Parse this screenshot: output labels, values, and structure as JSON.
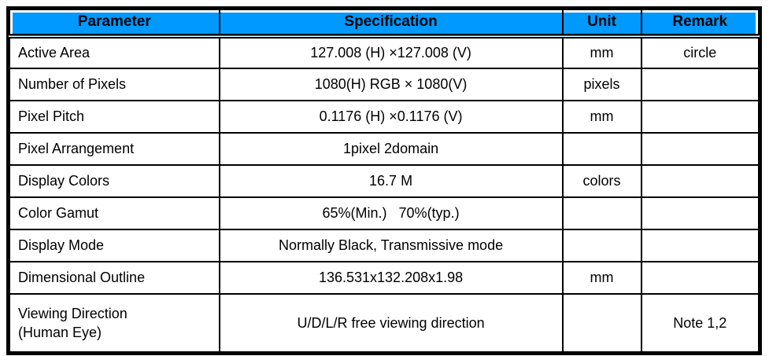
{
  "page": {
    "background": "#ffffff"
  },
  "table": {
    "colors": {
      "header_bg": "#0099ff",
      "header_text": "#000000",
      "border": "#000000",
      "body_bg": "#ffffff"
    },
    "columns": [
      {
        "key": "parameter",
        "label": "Parameter"
      },
      {
        "key": "specification",
        "label": "Specification"
      },
      {
        "key": "unit",
        "label": "Unit"
      },
      {
        "key": "remark",
        "label": "Remark"
      }
    ],
    "rows": [
      {
        "parameter": "Active Area",
        "specification": "127.008 (H) ×127.008 (V)",
        "unit": "mm",
        "remark": "circle"
      },
      {
        "parameter": "Number of Pixels",
        "specification": "1080(H) RGB × 1080(V)",
        "unit": "pixels",
        "remark": ""
      },
      {
        "parameter": "Pixel Pitch",
        "specification": "0.1176 (H) ×0.1176 (V)",
        "unit": "mm",
        "remark": ""
      },
      {
        "parameter": "Pixel Arrangement",
        "specification": "1pixel 2domain",
        "unit": "",
        "remark": ""
      },
      {
        "parameter": "Display Colors",
        "specification": "16.7 M",
        "unit": "colors",
        "remark": ""
      },
      {
        "parameter": "Color Gamut",
        "specification": "65%(Min.)   70%(typ.)",
        "unit": "",
        "remark": ""
      },
      {
        "parameter": "Display Mode",
        "specification": "Normally Black, Transmissive mode",
        "unit": "",
        "remark": ""
      },
      {
        "parameter": "Dimensional Outline",
        "specification": "136.531x132.208x1.98",
        "unit": "mm",
        "remark": ""
      },
      {
        "parameter": "Viewing Direction\n(Human Eye)",
        "specification": "U/D/L/R free viewing direction",
        "unit": "",
        "remark": "Note 1,2"
      }
    ]
  }
}
